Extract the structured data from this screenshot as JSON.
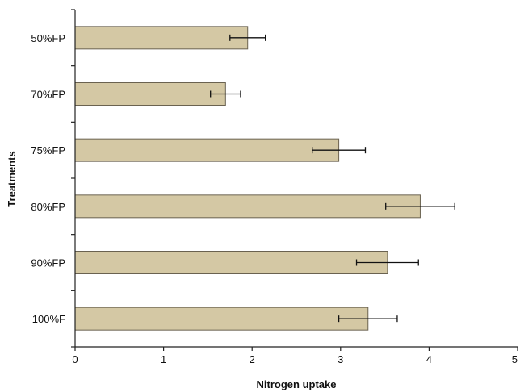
{
  "chart_data": {
    "type": "bar",
    "orientation": "horizontal",
    "categories": [
      "50%FP",
      "70%FP",
      "75%FP",
      "80%FP",
      "90%FP",
      "100%F"
    ],
    "values": [
      1.95,
      1.7,
      2.98,
      3.9,
      3.53,
      3.31
    ],
    "errors": [
      0.2,
      0.17,
      0.3,
      0.39,
      0.35,
      0.33
    ],
    "xlabel": "Nitrogen uptake",
    "ylabel": "Treatments",
    "xlim": [
      0,
      5
    ],
    "xticks": [
      "0",
      "1",
      "2",
      "3",
      "4",
      "5"
    ],
    "grid": false,
    "legend": "none",
    "colors": {
      "bar_fill": "#d4c8a4",
      "bar_stroke": "#6a6250",
      "axis": "#222222",
      "error_bar": "#111111"
    }
  }
}
